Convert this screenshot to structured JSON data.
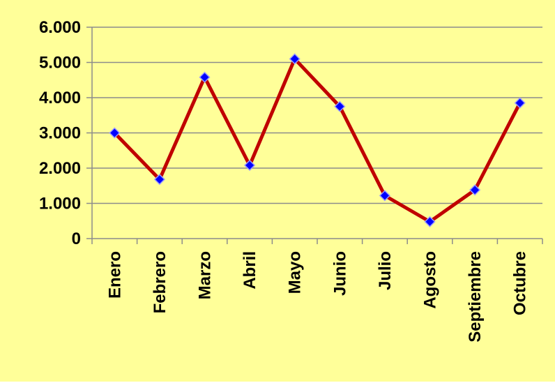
{
  "chart_data": {
    "type": "line",
    "categories": [
      "Enero",
      "Febrero",
      "Marzo",
      "Abril",
      "Mayo",
      "Junio",
      "Julio",
      "Agosto",
      "Septiembre",
      "Octubre"
    ],
    "values": [
      3000,
      1680,
      4580,
      2080,
      5100,
      3750,
      1220,
      480,
      1380,
      3850
    ],
    "ylim": [
      0,
      6000
    ],
    "yticks": [
      0,
      1000,
      2000,
      3000,
      4000,
      5000,
      6000
    ],
    "ytick_labels": [
      "0",
      "1.000",
      "2.000",
      "3.000",
      "4.000",
      "5.000",
      "6.000"
    ],
    "grid": true,
    "legend": "none",
    "colors": {
      "background": "#FFFF99",
      "line": "#C00000",
      "marker": "#0000FF",
      "marker_edge": "#9999FF",
      "grid": "#8C8C8C"
    }
  }
}
